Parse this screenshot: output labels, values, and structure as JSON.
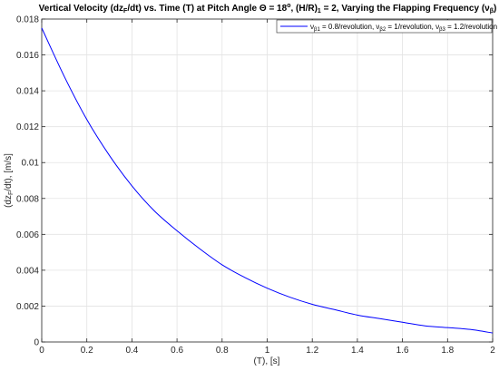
{
  "chart_data": {
    "type": "line",
    "title": "Vertical Velocity (dz_F/dt) vs. Time (T) at Pitch Angle Θ = 18°, (H/R)_1 = 2, Varying the Flapping Frequency (ν_β)",
    "title_parts": {
      "a": "Vertical Velocity (dz",
      "a_sub": "F",
      "b": "/dt) vs. Time (T) at Pitch Angle Θ = 18",
      "b_sup": "o",
      "c": ", (H/R)",
      "c_sub": "1",
      "d": " = 2, Varying the Flapping Frequency (ν",
      "d_sub": "β",
      "e": ")"
    },
    "xlabel": "(T), [s]",
    "ylabel_parts": {
      "a": "(dz",
      "a_sub": "F",
      "b": "/dt), [m/s]"
    },
    "xlim": [
      0,
      2
    ],
    "ylim": [
      0,
      0.018
    ],
    "x_ticks": [
      0,
      0.2,
      0.4,
      0.6,
      0.8,
      1,
      1.2,
      1.4,
      1.6,
      1.8,
      2
    ],
    "x_tick_labels": [
      "0",
      "0.2",
      "0.4",
      "0.6",
      "0.8",
      "1",
      "1.2",
      "1.4",
      "1.6",
      "1.8",
      "2"
    ],
    "y_ticks": [
      0,
      0.002,
      0.004,
      0.006,
      0.008,
      0.01,
      0.012,
      0.014,
      0.016,
      0.018
    ],
    "y_tick_labels": [
      "0",
      "0.002",
      "0.004",
      "0.006",
      "0.008",
      "0.01",
      "0.012",
      "0.014",
      "0.016",
      "0.018"
    ],
    "grid": true,
    "legend_position": "top-right",
    "legend_entries": [
      {
        "greek": "ν",
        "sub": "β1",
        "text": " = 0.8/revolution, "
      },
      {
        "greek": "ν",
        "sub": "β2",
        "text": " = 1/revolution, "
      },
      {
        "greek": "ν",
        "sub": "β3",
        "text": " = 1.2/revolution"
      }
    ],
    "series": [
      {
        "color": "#0000ff",
        "x": [
          0,
          0.1,
          0.2,
          0.3,
          0.4,
          0.5,
          0.6,
          0.7,
          0.8,
          0.9,
          1.0,
          1.1,
          1.2,
          1.3,
          1.4,
          1.5,
          1.6,
          1.7,
          1.8,
          1.9,
          2.0
        ],
        "y": [
          0.0175,
          0.0148,
          0.0124,
          0.0104,
          0.0087,
          0.0073,
          0.0062,
          0.0052,
          0.0043,
          0.0036,
          0.003,
          0.0025,
          0.0021,
          0.0018,
          0.0015,
          0.0013,
          0.0011,
          0.0009,
          0.0008,
          0.0007,
          0.0005
        ]
      }
    ]
  }
}
